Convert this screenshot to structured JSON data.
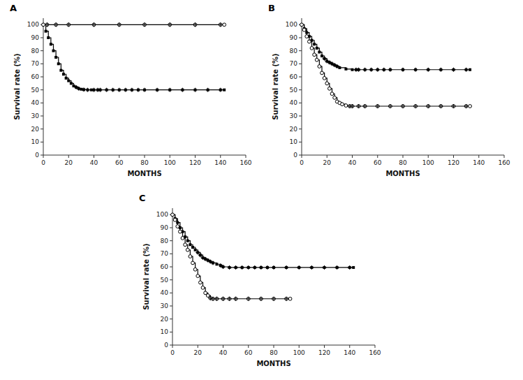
{
  "chart_data": [
    {
      "type": "line",
      "title": "A",
      "xlabel": "MONTHS",
      "ylabel": "Survival rate (%)",
      "xlim": [
        0,
        160
      ],
      "ylim": [
        0,
        105
      ],
      "xticks": [
        0,
        20,
        40,
        60,
        80,
        100,
        120,
        140,
        160
      ],
      "yticks": [
        0,
        10,
        20,
        30,
        40,
        50,
        60,
        70,
        80,
        90,
        100
      ],
      "series": [
        {
          "type": "step",
          "marker": "square",
          "color": "black",
          "x": [
            0,
            2,
            4,
            6,
            8,
            10,
            12,
            14,
            16,
            18,
            20,
            22,
            24,
            26,
            28,
            30,
            32,
            35,
            38,
            40,
            43,
            45,
            50,
            55,
            60,
            65,
            70,
            75,
            80,
            90,
            100,
            110,
            120,
            130,
            140,
            143
          ],
          "values": [
            100,
            95,
            90,
            85,
            80,
            75,
            70,
            65,
            62,
            59,
            57,
            55,
            53,
            52,
            51,
            50.5,
            50.2,
            50,
            50,
            50,
            50,
            50,
            50,
            50,
            50,
            50,
            50,
            50,
            50,
            50,
            50,
            50,
            50,
            50,
            50,
            50
          ]
        },
        {
          "type": "scatter",
          "marker": "plus",
          "color": "black",
          "x": [
            26,
            28,
            32,
            35,
            40,
            43,
            45,
            50,
            55,
            60,
            65,
            70,
            75,
            80,
            90,
            100,
            110,
            120,
            130,
            140
          ],
          "values": [
            52,
            51,
            50.2,
            50,
            50,
            50,
            50,
            50,
            50,
            50,
            50,
            50,
            50,
            50,
            50,
            50,
            50,
            50,
            50,
            50
          ]
        },
        {
          "type": "step",
          "marker": "circle-open",
          "color": "black",
          "x": [
            0,
            3,
            10,
            20,
            40,
            60,
            80,
            100,
            120,
            140,
            143
          ],
          "values": [
            100,
            100,
            100,
            100,
            100,
            100,
            100,
            100,
            100,
            100,
            100
          ]
        },
        {
          "type": "scatter",
          "marker": "plus",
          "color": "black",
          "x": [
            3,
            10,
            20,
            40,
            60,
            80,
            100,
            120,
            140
          ],
          "values": [
            100,
            100,
            100,
            100,
            100,
            100,
            100,
            100,
            100
          ]
        }
      ]
    },
    {
      "type": "line",
      "title": "B",
      "xlabel": "MONTHS",
      "ylabel": "Survival rate (%)",
      "xlim": [
        0,
        160
      ],
      "ylim": [
        0,
        105
      ],
      "xticks": [
        0,
        20,
        40,
        60,
        80,
        100,
        120,
        140,
        160
      ],
      "yticks": [
        0,
        10,
        20,
        30,
        40,
        50,
        60,
        70,
        80,
        90,
        100
      ],
      "series": [
        {
          "type": "step",
          "marker": "square",
          "color": "black",
          "x": [
            0,
            2,
            4,
            6,
            8,
            10,
            12,
            14,
            16,
            18,
            20,
            22,
            24,
            26,
            28,
            30,
            35,
            40,
            43,
            45,
            50,
            55,
            60,
            65,
            70,
            80,
            90,
            100,
            110,
            120,
            130,
            133
          ],
          "values": [
            100,
            97,
            94,
            91,
            88,
            85,
            82,
            79,
            76,
            74,
            72,
            71,
            70,
            69,
            68,
            67,
            66,
            65.5,
            65.5,
            65.5,
            65.5,
            65.5,
            65.5,
            65.5,
            65.5,
            65.5,
            65.5,
            65.5,
            65.5,
            65.5,
            65.5,
            65.5
          ]
        },
        {
          "type": "scatter",
          "marker": "plus",
          "color": "black",
          "x": [
            18,
            20,
            22,
            24,
            26,
            28,
            43,
            45,
            50,
            55,
            60,
            65,
            70,
            80,
            90,
            100,
            110,
            120,
            130
          ],
          "values": [
            74,
            72,
            71,
            70,
            69,
            68,
            65.5,
            65.5,
            65.5,
            65.5,
            65.5,
            65.5,
            65.5,
            65.5,
            65.5,
            65.5,
            65.5,
            65.5,
            65.5
          ]
        },
        {
          "type": "step",
          "marker": "circle-open",
          "color": "black",
          "x": [
            0,
            2,
            4,
            6,
            8,
            10,
            12,
            14,
            16,
            18,
            20,
            22,
            24,
            26,
            28,
            30,
            32,
            35,
            38,
            40,
            45,
            50,
            60,
            70,
            80,
            90,
            100,
            110,
            120,
            130,
            133
          ],
          "values": [
            100,
            96,
            91,
            87,
            82,
            77,
            73,
            68,
            63,
            59,
            55,
            51,
            47,
            44,
            41,
            40,
            39,
            38,
            37.5,
            37.5,
            37.5,
            37.5,
            37.5,
            37.5,
            37.5,
            37.5,
            37.5,
            37.5,
            37.5,
            37.5,
            37.5
          ]
        },
        {
          "type": "scatter",
          "marker": "plus",
          "color": "black",
          "x": [
            38,
            40,
            45,
            50,
            60,
            70,
            80,
            90,
            100,
            110,
            120,
            130
          ],
          "values": [
            37.5,
            37.5,
            37.5,
            37.5,
            37.5,
            37.5,
            37.5,
            37.5,
            37.5,
            37.5,
            37.5,
            37.5
          ]
        }
      ]
    },
    {
      "type": "line",
      "title": "C",
      "xlabel": "MONTHS",
      "ylabel": "Survival rate (%)",
      "xlim": [
        0,
        160
      ],
      "ylim": [
        0,
        105
      ],
      "xticks": [
        0,
        20,
        40,
        60,
        80,
        100,
        120,
        140,
        160
      ],
      "yticks": [
        0,
        10,
        20,
        30,
        40,
        50,
        60,
        70,
        80,
        90,
        100
      ],
      "series": [
        {
          "type": "step",
          "marker": "square",
          "color": "black",
          "x": [
            0,
            2,
            4,
            6,
            8,
            10,
            12,
            14,
            16,
            18,
            20,
            22,
            24,
            26,
            28,
            30,
            32,
            35,
            38,
            40,
            45,
            50,
            55,
            60,
            65,
            70,
            75,
            80,
            90,
            100,
            110,
            120,
            130,
            140,
            143
          ],
          "values": [
            100,
            97,
            94,
            90,
            87,
            83,
            80,
            77,
            75,
            73,
            71,
            69,
            67,
            66,
            65,
            64,
            63,
            62,
            61,
            60,
            59.5,
            59.5,
            59.5,
            59.5,
            59.5,
            59.5,
            59.5,
            59.5,
            59.5,
            59.5,
            59.5,
            59.5,
            59.5,
            59.5,
            59.5
          ]
        },
        {
          "type": "scatter",
          "marker": "plus",
          "color": "black",
          "x": [
            20,
            22,
            24,
            26,
            28,
            30,
            32,
            38,
            40,
            45,
            50,
            55,
            60,
            65,
            70,
            75,
            80,
            90,
            100,
            110,
            120,
            130,
            140
          ],
          "values": [
            71,
            69,
            67,
            66,
            65,
            64,
            63,
            61,
            60,
            59.5,
            59.5,
            59.5,
            59.5,
            59.5,
            59.5,
            59.5,
            59.5,
            59.5,
            59.5,
            59.5,
            59.5,
            59.5,
            59.5
          ]
        },
        {
          "type": "step",
          "marker": "circle-open",
          "color": "black",
          "x": [
            0,
            2,
            4,
            6,
            8,
            10,
            12,
            14,
            16,
            18,
            20,
            22,
            24,
            26,
            28,
            30,
            32,
            35,
            40,
            45,
            50,
            60,
            70,
            80,
            90,
            93
          ],
          "values": [
            100,
            96,
            91,
            87,
            82,
            77,
            73,
            68,
            63,
            58,
            53,
            48,
            44,
            40,
            38,
            36,
            35.5,
            35.5,
            35.5,
            35.5,
            35.5,
            35.5,
            35.5,
            35.5,
            35.5,
            35.5
          ]
        },
        {
          "type": "scatter",
          "marker": "plus",
          "color": "black",
          "x": [
            30,
            32,
            35,
            40,
            45,
            50,
            60,
            70,
            80,
            90
          ],
          "values": [
            36,
            35.5,
            35.5,
            35.5,
            35.5,
            35.5,
            35.5,
            35.5,
            35.5,
            35.5
          ]
        }
      ]
    }
  ]
}
